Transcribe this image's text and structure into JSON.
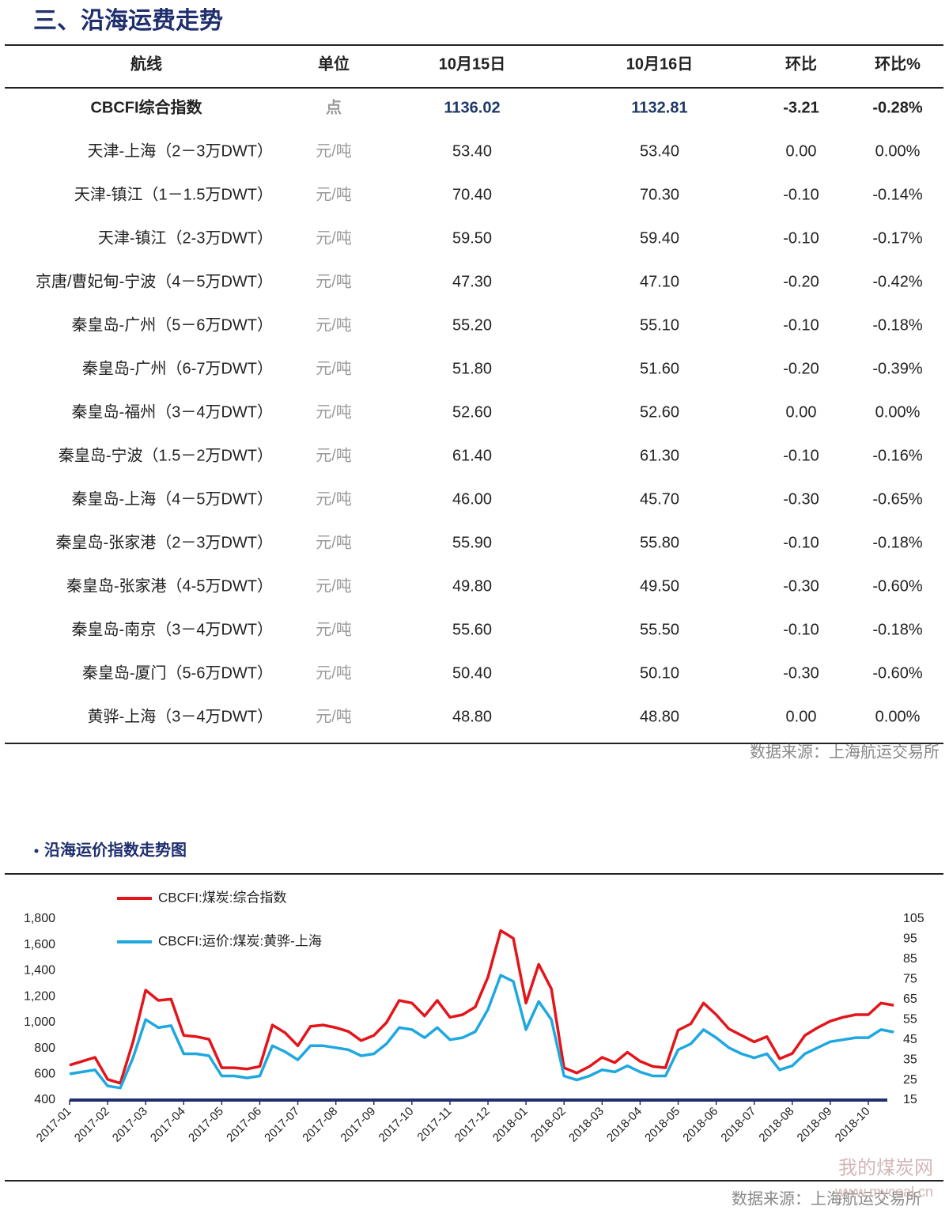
{
  "header": {
    "title": "三、沿海运费走势"
  },
  "table": {
    "columns": [
      "航线",
      "单位",
      "10月15日",
      "10月16日",
      "环比",
      "环比%"
    ],
    "rows": [
      [
        "CBCFI综合指数",
        "点",
        "1136.02",
        "1132.81",
        "-3.21",
        "-0.28%"
      ],
      [
        "天津-上海（2－3万DWT）",
        "元/吨",
        "53.40",
        "53.40",
        "0.00",
        "0.00%"
      ],
      [
        "天津-镇江（1－1.5万DWT）",
        "元/吨",
        "70.40",
        "70.30",
        "-0.10",
        "-0.14%"
      ],
      [
        "天津-镇江（2-3万DWT）",
        "元/吨",
        "59.50",
        "59.40",
        "-0.10",
        "-0.17%"
      ],
      [
        "京唐/曹妃甸-宁波（4－5万DWT）",
        "元/吨",
        "47.30",
        "47.10",
        "-0.20",
        "-0.42%"
      ],
      [
        "秦皇岛-广州（5－6万DWT）",
        "元/吨",
        "55.20",
        "55.10",
        "-0.10",
        "-0.18%"
      ],
      [
        "秦皇岛-广州（6-7万DWT）",
        "元/吨",
        "51.80",
        "51.60",
        "-0.20",
        "-0.39%"
      ],
      [
        "秦皇岛-福州（3－4万DWT）",
        "元/吨",
        "52.60",
        "52.60",
        "0.00",
        "0.00%"
      ],
      [
        "秦皇岛-宁波（1.5－2万DWT）",
        "元/吨",
        "61.40",
        "61.30",
        "-0.10",
        "-0.16%"
      ],
      [
        "秦皇岛-上海（4－5万DWT）",
        "元/吨",
        "46.00",
        "45.70",
        "-0.30",
        "-0.65%"
      ],
      [
        "秦皇岛-张家港（2－3万DWT）",
        "元/吨",
        "55.90",
        "55.80",
        "-0.10",
        "-0.18%"
      ],
      [
        "秦皇岛-张家港（4-5万DWT）",
        "元/吨",
        "49.80",
        "49.50",
        "-0.30",
        "-0.60%"
      ],
      [
        "秦皇岛-南京（3－4万DWT）",
        "元/吨",
        "55.60",
        "55.50",
        "-0.10",
        "-0.18%"
      ],
      [
        "秦皇岛-厦门（5-6万DWT）",
        "元/吨",
        "50.40",
        "50.10",
        "-0.30",
        "-0.60%"
      ],
      [
        "黄骅-上海（3－4万DWT）",
        "元/吨",
        "48.80",
        "48.80",
        "0.00",
        "0.00%"
      ]
    ]
  },
  "table_source": "数据来源：上海航运交易所",
  "chart_data": {
    "type": "line",
    "title": "沿海运价指数走势图",
    "categories": [
      "2017-01",
      null,
      null,
      "2017-02",
      null,
      null,
      "2017-03",
      null,
      null,
      "2017-04",
      null,
      null,
      "2017-05",
      null,
      null,
      "2017-06",
      null,
      null,
      "2017-07",
      null,
      null,
      "2017-08",
      null,
      null,
      "2017-09",
      null,
      null,
      "2017-10",
      null,
      null,
      "2017-11",
      null,
      null,
      "2017-12",
      null,
      null,
      "2018-01",
      null,
      null,
      "2018-02",
      null,
      null,
      "2018-03",
      null,
      null,
      "2018-04",
      null,
      null,
      "2018-05",
      null,
      null,
      "2018-06",
      null,
      null,
      "2018-07",
      null,
      null,
      "2018-08",
      null,
      null,
      "2018-09",
      null,
      null,
      "2018-10",
      null,
      null
    ],
    "series": [
      {
        "name": "CBCFI:煤炭:综合指数",
        "color": "#e3151b",
        "axis": "y",
        "values": [
          670,
          700,
          730,
          560,
          530,
          850,
          1250,
          1170,
          1180,
          900,
          890,
          870,
          650,
          650,
          640,
          660,
          980,
          920,
          820,
          970,
          980,
          960,
          930,
          860,
          900,
          1000,
          1170,
          1150,
          1050,
          1170,
          1040,
          1060,
          1120,
          1350,
          1710,
          1650,
          1150,
          1450,
          1260,
          650,
          610,
          660,
          730,
          690,
          770,
          700,
          660,
          650,
          940,
          990,
          1150,
          1060,
          950,
          900,
          850,
          890,
          720,
          760,
          900,
          960,
          1010,
          1040,
          1060,
          1060,
          1150,
          1133
        ]
      },
      {
        "name": "CBCFI:运价:煤炭:黄骅-上海",
        "color": "#1fa8e0",
        "axis": "y2",
        "values": [
          28,
          29,
          30,
          22,
          21,
          36,
          55,
          51,
          52,
          38,
          38,
          37,
          27,
          27,
          26,
          27,
          42,
          39,
          35,
          42,
          42,
          41,
          40,
          37,
          38,
          43,
          51,
          50,
          46,
          51,
          45,
          46,
          49,
          60,
          77,
          74,
          50,
          64,
          55,
          27,
          25,
          27,
          30,
          29,
          32,
          29,
          27,
          27,
          40,
          43,
          50,
          46,
          41,
          38,
          36,
          38,
          30,
          32,
          38,
          41,
          44,
          45,
          46,
          46,
          50,
          48.8
        ]
      }
    ],
    "ylim": [
      400,
      1800
    ],
    "yticks": [
      400,
      600,
      800,
      {
        "value": 1000,
        "label": "1,000"
      },
      {
        "value": 1200,
        "label": "1,200"
      },
      {
        "value": 1400,
        "label": "1,400"
      },
      {
        "value": 1600,
        "label": "1,600"
      },
      {
        "value": 1800,
        "label": "1,800"
      }
    ],
    "y2lim": [
      15,
      105
    ],
    "y2ticks": [
      15,
      25,
      35,
      45,
      55,
      65,
      75,
      85,
      95,
      105
    ],
    "grid": false
  },
  "chart_source": "数据来源：上海航运交易所",
  "watermark": [
    "我的煤炭网",
    "www.mycoal.cn"
  ]
}
